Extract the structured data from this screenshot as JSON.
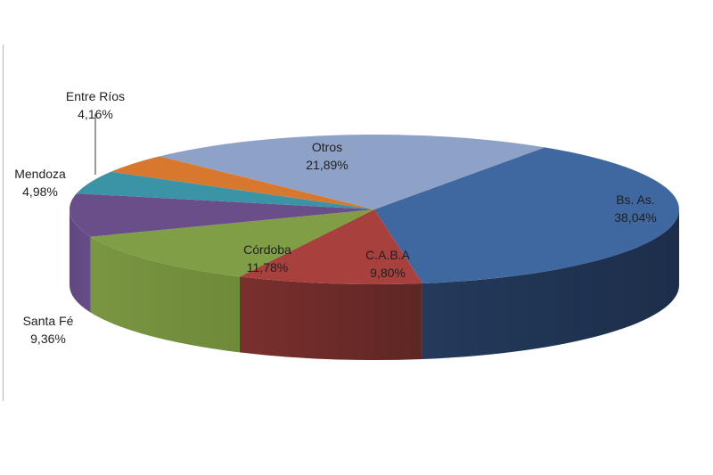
{
  "chart_data": {
    "type": "pie",
    "style": "3d-exploded-none",
    "title": "",
    "legend": "none (labels on slices)",
    "slices": [
      {
        "label": "Bs. As.",
        "value": 38.04,
        "display": "38,04%",
        "color": "#4068A0"
      },
      {
        "label": "C.A.B.A",
        "value": 9.8,
        "display": "9,80%",
        "color": "#A8413E"
      },
      {
        "label": "Córdoba",
        "value": 11.78,
        "display": "11,78%",
        "color": "#809E45"
      },
      {
        "label": "Santa Fé",
        "value": 9.36,
        "display": "9,36%",
        "color": "#6A4E8A"
      },
      {
        "label": "Mendoza",
        "value": 4.98,
        "display": "4,98%",
        "color": "#3A94A6"
      },
      {
        "label": "Entre Ríos",
        "value": 4.16,
        "display": "4,16%",
        "color": "#D8782E"
      },
      {
        "label": "Otros",
        "value": 21.89,
        "display": "21,89%",
        "color": "#8EA2C8"
      }
    ]
  },
  "labels": {
    "bsas": {
      "name": "Bs. As.",
      "pct": "38,04%"
    },
    "caba": {
      "name": "C.A.B.A",
      "pct": "9,80%"
    },
    "cordoba": {
      "name": "Córdoba",
      "pct": "11,78%"
    },
    "santafe": {
      "name": "Santa Fé",
      "pct": "9,36%"
    },
    "mendoza": {
      "name": "Mendoza",
      "pct": "4,98%"
    },
    "entrerios": {
      "name": "Entre Ríos",
      "pct": "4,16%"
    },
    "otros": {
      "name": "Otros",
      "pct": "21,89%"
    }
  }
}
